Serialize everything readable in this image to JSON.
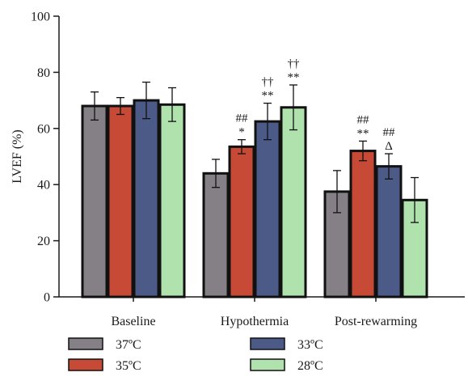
{
  "chart_data": {
    "type": "bar",
    "title": "",
    "xlabel": "",
    "ylabel": "LVEF (%)",
    "ylim": [
      0,
      100
    ],
    "yticks": [
      0,
      20,
      40,
      60,
      80,
      100
    ],
    "categories": [
      "Baseline",
      "Hypothermia",
      "Post-rewarming"
    ],
    "series": [
      {
        "name": "37ºC",
        "color": "#858085",
        "values": [
          68,
          44,
          37.5
        ],
        "errors": [
          5,
          5,
          7.5
        ]
      },
      {
        "name": "35ºC",
        "color": "#c64a36",
        "values": [
          68,
          53.5,
          52
        ],
        "errors": [
          3,
          2.5,
          3.5
        ]
      },
      {
        "name": "33ºC",
        "color": "#4b5a86",
        "values": [
          70,
          62.5,
          46.5
        ],
        "errors": [
          6.5,
          6.5,
          4.5
        ]
      },
      {
        "name": "28ºC",
        "color": "#b0e2ad",
        "values": [
          68.5,
          67.5,
          34.5
        ],
        "errors": [
          6,
          8,
          8
        ]
      }
    ],
    "annotations": [
      {
        "category": "Hypothermia",
        "series": "35ºC",
        "lines": [
          "##",
          "*"
        ]
      },
      {
        "category": "Hypothermia",
        "series": "33ºC",
        "lines": [
          "††",
          "**"
        ]
      },
      {
        "category": "Hypothermia",
        "series": "28ºC",
        "lines": [
          "††",
          "**"
        ]
      },
      {
        "category": "Post-rewarming",
        "series": "35ºC",
        "lines": [
          "##",
          "**"
        ]
      },
      {
        "category": "Post-rewarming",
        "series": "33ºC",
        "lines": [
          "##",
          "Δ"
        ]
      }
    ],
    "grid": false,
    "legend_position": "bottom"
  }
}
